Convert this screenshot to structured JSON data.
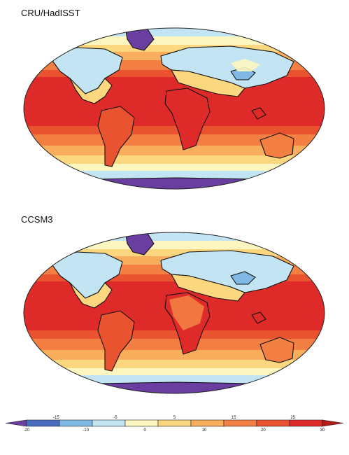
{
  "panels": [
    {
      "title": "CRU/HadISST"
    },
    {
      "title": "CCSM3"
    }
  ],
  "colorbar": {
    "levels_upper": [
      "-15",
      "-5",
      "5",
      "15",
      "25"
    ],
    "levels_lower": [
      "-20",
      "-10",
      "0",
      "10",
      "20",
      "30"
    ],
    "colors": [
      "#6a3ea1",
      "#4a6fc0",
      "#7fb9e6",
      "#c3e4f3",
      "#fef6c0",
      "#fbd77f",
      "#f8ae5c",
      "#f37f43",
      "#ea5330",
      "#de2a28",
      "#b51a1a"
    ]
  },
  "palette": {
    "ocean_warm": "#de2a28",
    "ocean_20": "#ea5330",
    "ocean_15": "#f37f43",
    "ocean_10": "#f8ae5c",
    "cold_5": "#fbd77f",
    "cold_0": "#fef6c0",
    "cold_m5": "#c3e4f3",
    "cold_m15": "#7fb9e6",
    "polar": "#6a3ea1"
  }
}
